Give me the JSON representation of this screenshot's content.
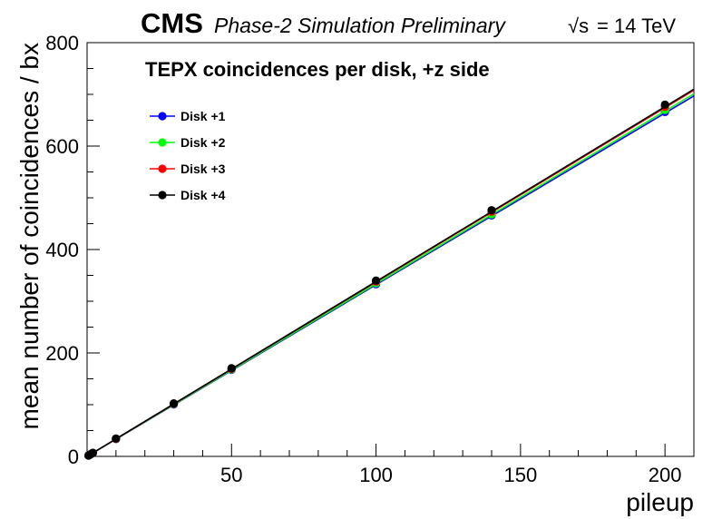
{
  "header": {
    "experiment": "CMS",
    "status": "Phase-2 Simulation Preliminary",
    "energy_sqrt": "√s",
    "energy_value": "= 14 TeV"
  },
  "chart_data": {
    "type": "line",
    "title": "TEPX coincidences per disk, +z side",
    "xlabel": "pileup",
    "ylabel": "mean number of coincidences / bx",
    "xlim": [
      0,
      210
    ],
    "ylim": [
      0,
      800
    ],
    "x_ticks": [
      50,
      100,
      150,
      200
    ],
    "y_ticks": [
      0,
      200,
      400,
      600,
      800
    ],
    "grid": false,
    "legend_position": "top-left",
    "x": [
      0.5,
      1,
      1.5,
      2,
      10,
      30,
      50,
      100,
      140,
      200
    ],
    "series": [
      {
        "name": "Disk +1",
        "color": "#0000ff",
        "values": [
          1.7,
          3.3,
          5.0,
          6.6,
          33.5,
          100.5,
          167.5,
          333,
          466,
          666
        ],
        "line_end": 697
      },
      {
        "name": "Disk +2",
        "color": "#00ff00",
        "values": [
          1.7,
          3.4,
          5.1,
          6.8,
          34,
          101.5,
          168.5,
          335,
          468,
          670
        ],
        "line_end": 701
      },
      {
        "name": "Disk +3",
        "color": "#ff0000",
        "values": [
          1.7,
          3.4,
          5.1,
          6.8,
          34,
          102,
          169.5,
          338,
          473,
          676
        ],
        "line_end": 708
      },
      {
        "name": "Disk +4",
        "color": "#000000",
        "values": [
          1.7,
          3.4,
          5.1,
          6.8,
          34.5,
          102.5,
          170.5,
          340,
          476,
          680
        ],
        "line_end": 710
      }
    ]
  }
}
